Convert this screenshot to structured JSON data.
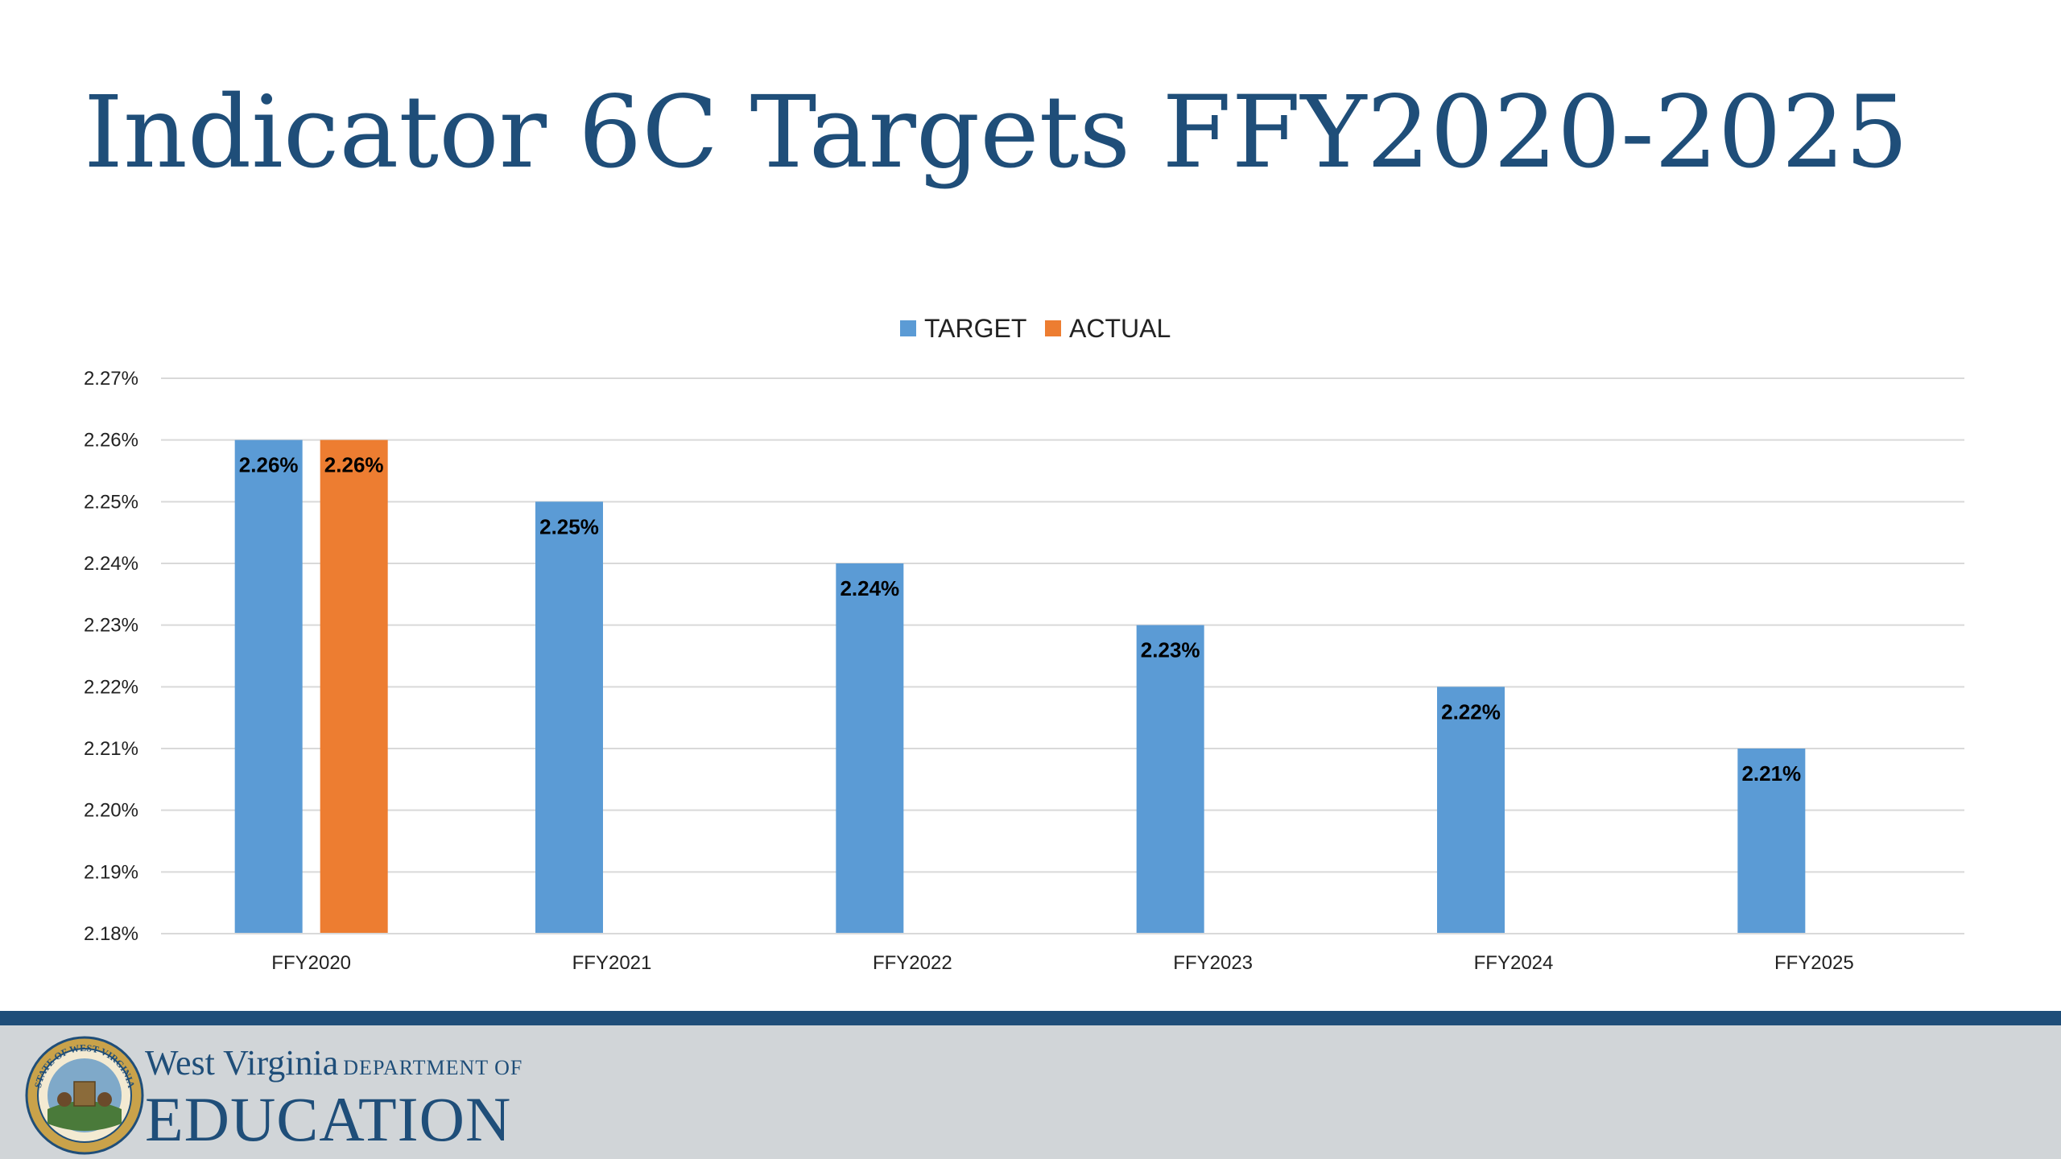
{
  "slide": {
    "title": "Indicator 6C Targets FFY2020-2025"
  },
  "chart_data": {
    "type": "bar",
    "title": "",
    "xlabel": "",
    "ylabel": "",
    "categories": [
      "FFY2020",
      "FFY2021",
      "FFY2022",
      "FFY2023",
      "FFY2024",
      "FFY2025"
    ],
    "series": [
      {
        "name": "TARGET",
        "color": "#5b9bd5",
        "values": [
          2.26,
          2.25,
          2.24,
          2.23,
          2.22,
          2.21
        ],
        "labels": [
          "2.26%",
          "2.25%",
          "2.24%",
          "2.23%",
          "2.22%",
          "2.21%"
        ]
      },
      {
        "name": "ACTUAL",
        "color": "#ed7d31",
        "values": [
          2.26,
          null,
          null,
          null,
          null,
          null
        ],
        "labels": [
          "2.26%",
          null,
          null,
          null,
          null,
          null
        ]
      }
    ],
    "ylim": [
      2.18,
      2.27
    ],
    "yticks": [
      2.18,
      2.19,
      2.2,
      2.21,
      2.22,
      2.23,
      2.24,
      2.25,
      2.26,
      2.27
    ],
    "ytick_labels": [
      "2.18%",
      "2.19%",
      "2.20%",
      "2.21%",
      "2.22%",
      "2.23%",
      "2.24%",
      "2.25%",
      "2.26%",
      "2.27%"
    ],
    "grid": true,
    "legend_position": "top-center"
  },
  "footer": {
    "brand_line1": "West Virginia",
    "brand_dept": "DEPARTMENT OF",
    "brand_line2": "EDUCATION",
    "seal_text": "STATE OF WEST VIRGINIA",
    "colors": {
      "brand": "#1f4e79",
      "band": "#d1d5d8"
    }
  }
}
